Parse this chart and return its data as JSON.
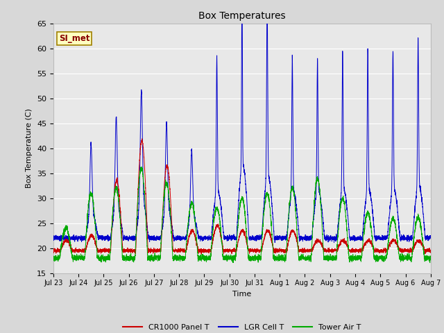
{
  "title": "Box Temperatures",
  "xlabel": "Time",
  "ylabel": "Box Temperature (C)",
  "ylim": [
    15,
    65
  ],
  "yticks": [
    15,
    20,
    25,
    30,
    35,
    40,
    45,
    50,
    55,
    60,
    65
  ],
  "plot_bg_color": "#e8e8e8",
  "fig_bg_color": "#d8d8d8",
  "grid_color": "#ffffff",
  "annotation_text": "SI_met",
  "annotation_bg": "#ffffc0",
  "annotation_border": "#a08000",
  "annotation_text_color": "#880000",
  "colors": {
    "CR1000": "#cc0000",
    "LGR": "#0000cc",
    "Tower": "#00aa00"
  },
  "legend_labels": [
    "CR1000 Panel T",
    "LGR Cell T",
    "Tower Air T"
  ],
  "xtick_labels": [
    "Jul 23",
    "Jul 24",
    "Jul 25",
    "Jul 26",
    "Jul 27",
    "Jul 28",
    "Jul 29",
    "Jul 30",
    "Jul 31",
    "Aug 1",
    "Aug 2",
    "Aug 3",
    "Aug 4",
    "Aug 5",
    "Aug 6",
    "Aug 7"
  ]
}
